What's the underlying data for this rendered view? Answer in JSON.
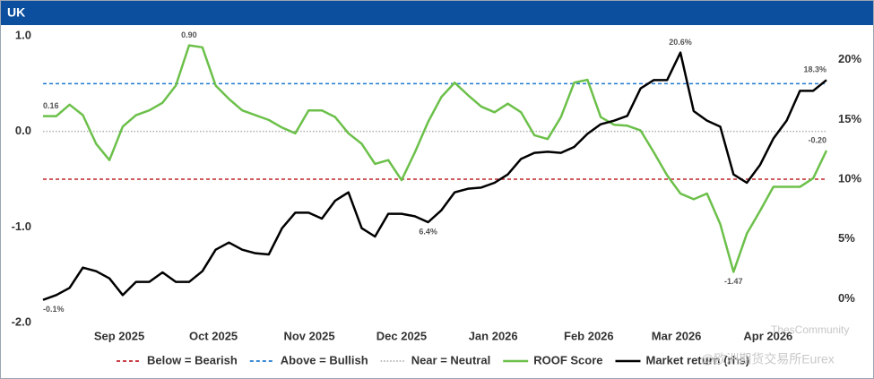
{
  "chart_data": {
    "type": "line",
    "title": "UK",
    "xlim": [
      0,
      59
    ],
    "xticks": [
      {
        "value": 5.74,
        "label": "Sep 2025"
      },
      {
        "value": 12.83,
        "label": "Oct 2025"
      },
      {
        "value": 20.05,
        "label": "Nov 2025"
      },
      {
        "value": 27.0,
        "label": "Dec 2025"
      },
      {
        "value": 33.9,
        "label": "Jan 2026"
      },
      {
        "value": 41.1,
        "label": "Feb 2026"
      },
      {
        "value": 47.7,
        "label": "Mar 2026"
      },
      {
        "value": 54.6,
        "label": "Apr 2026"
      }
    ],
    "ylim": [
      -2,
      1
    ],
    "yticks": [
      {
        "value": -2,
        "label": "-2.0"
      },
      {
        "value": -1,
        "label": "-1.0"
      },
      {
        "value": 0,
        "label": "0.0"
      },
      {
        "value": 1,
        "label": "1.0"
      }
    ],
    "y2lim": [
      -2,
      22
    ],
    "y2ticks": [
      {
        "value": 0,
        "label": "0%"
      },
      {
        "value": 5,
        "label": "5%"
      },
      {
        "value": 10,
        "label": "10%"
      },
      {
        "value": 15,
        "label": "15%"
      },
      {
        "value": 20,
        "label": "20%"
      }
    ],
    "reference_lines": [
      {
        "name": "Below = Bearish",
        "value": -0.5,
        "color": "#c0262c",
        "style": "dashed"
      },
      {
        "name": "Above = Bullish",
        "value": 0.5,
        "color": "#1f78d1",
        "style": "dashed"
      },
      {
        "name": "Near = Neutral",
        "value": 0,
        "color": "#b0b0b0",
        "style": "dotted"
      }
    ],
    "series": [
      {
        "name": "ROOF Score",
        "color": "#6cc04a",
        "values": [
          0.16,
          0.16,
          0.28,
          0.17,
          -0.13,
          -0.3,
          0.05,
          0.17,
          0.22,
          0.3,
          0.48,
          0.9,
          0.88,
          0.48,
          0.34,
          0.22,
          0.17,
          0.12,
          0.04,
          -0.02,
          0.22,
          0.22,
          0.15,
          -0.02,
          -0.13,
          -0.34,
          -0.3,
          -0.51,
          -0.22,
          0.1,
          0.36,
          0.51,
          0.38,
          0.26,
          0.2,
          0.29,
          0.2,
          -0.04,
          -0.08,
          0.15,
          0.51,
          0.54,
          0.15,
          0.07,
          0.06,
          0.01,
          -0.22,
          -0.46,
          -0.65,
          -0.71,
          -0.65,
          -0.97,
          -1.47,
          -1.07,
          -0.83,
          -0.58,
          -0.58,
          -0.58,
          -0.49,
          -0.2
        ],
        "value_labels": [
          "0.16",
          null,
          null,
          null,
          null,
          null,
          null,
          null,
          null,
          null,
          null,
          "0.90",
          null,
          null,
          null,
          null,
          null,
          null,
          null,
          null,
          null,
          null,
          null,
          null,
          null,
          null,
          null,
          null,
          null,
          null,
          null,
          null,
          null,
          null,
          null,
          null,
          null,
          null,
          null,
          null,
          null,
          null,
          null,
          null,
          null,
          null,
          null,
          null,
          null,
          null,
          null,
          null,
          "-1.47",
          null,
          null,
          null,
          null,
          null,
          null,
          "-0.20"
        ]
      },
      {
        "name": "Market return (rhs)",
        "color": "#000000",
        "axis": "y2",
        "values": [
          -0.1,
          0.3,
          0.9,
          2.6,
          2.3,
          1.7,
          0.3,
          1.4,
          1.4,
          2.2,
          1.4,
          1.4,
          2.3,
          4.1,
          4.7,
          4.1,
          3.8,
          3.7,
          5.9,
          7.2,
          7.2,
          6.7,
          8.2,
          8.9,
          5.9,
          5.2,
          7.1,
          7.1,
          6.9,
          6.4,
          7.4,
          8.9,
          9.2,
          9.3,
          9.7,
          10.4,
          11.7,
          12.2,
          12.3,
          12.2,
          12.7,
          13.8,
          14.6,
          14.9,
          15.3,
          17.6,
          18.3,
          18.3,
          20.6,
          15.7,
          14.9,
          14.4,
          10.4,
          9.7,
          11.2,
          13.4,
          14.9,
          17.4,
          17.4,
          18.3
        ],
        "value_labels": [
          "-0.1%",
          null,
          null,
          null,
          null,
          null,
          null,
          null,
          null,
          null,
          null,
          null,
          null,
          null,
          null,
          null,
          null,
          null,
          null,
          null,
          null,
          null,
          null,
          null,
          null,
          null,
          null,
          null,
          null,
          "6.4%",
          null,
          null,
          null,
          null,
          null,
          null,
          null,
          null,
          null,
          null,
          null,
          null,
          null,
          null,
          null,
          null,
          null,
          null,
          "20.6%",
          null,
          null,
          null,
          null,
          null,
          null,
          null,
          null,
          null,
          null,
          "18.3%"
        ]
      }
    ],
    "watermark": [
      "ThesCommunity",
      "@欧洲期货交易所Eurex"
    ]
  }
}
